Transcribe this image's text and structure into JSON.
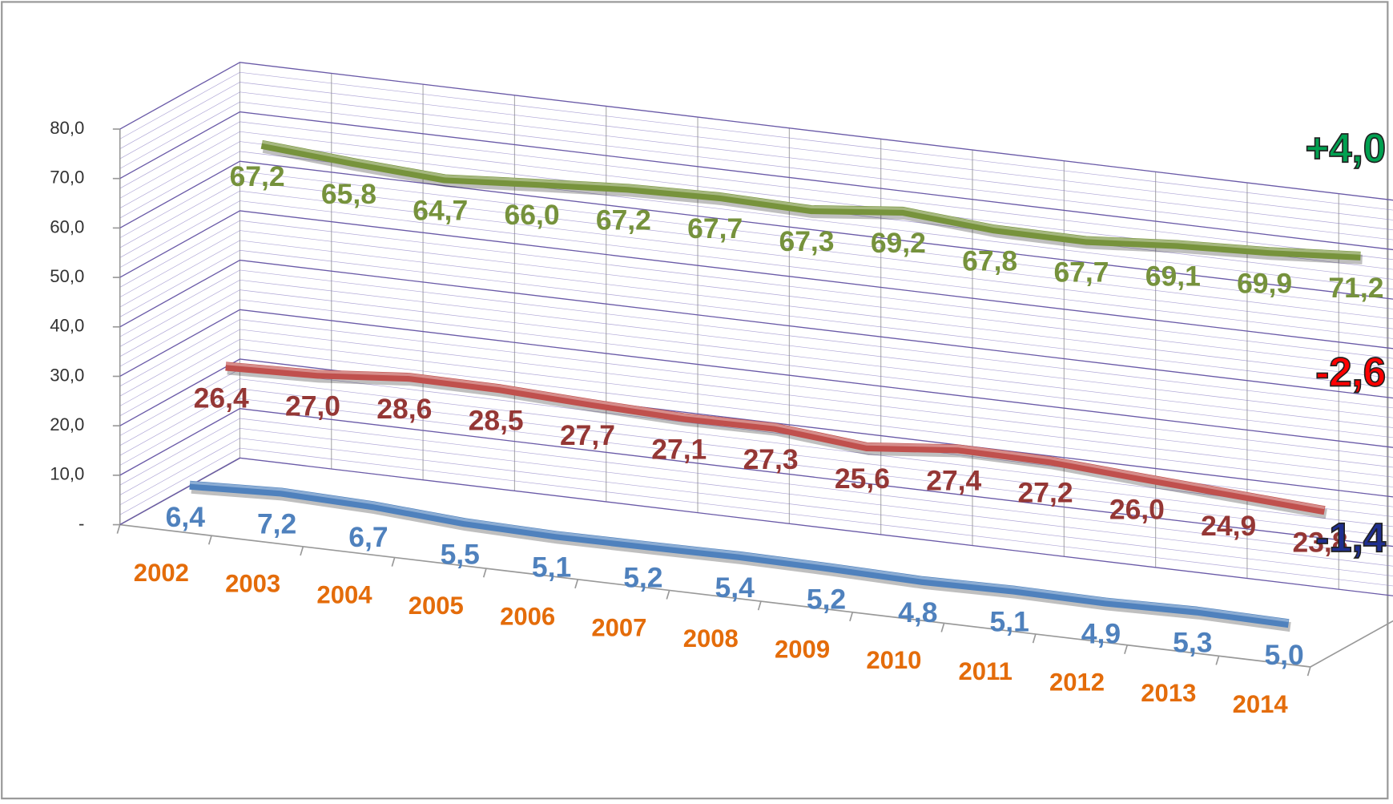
{
  "chart_data": {
    "type": "line",
    "categories": [
      "2002",
      "2003",
      "2004",
      "2005",
      "2006",
      "2007",
      "2008",
      "2009",
      "2010",
      "2011",
      "2012",
      "2013",
      "2014"
    ],
    "series": [
      {
        "color": "#77933c",
        "label_color": "#76923c",
        "values": [
          67.2,
          65.8,
          64.7,
          66.0,
          67.2,
          67.7,
          67.3,
          69.2,
          67.8,
          67.7,
          69.1,
          69.9,
          71.2
        ],
        "value_labels": [
          "67,2",
          "65,8",
          "64,7",
          "66,0",
          "67,2",
          "67,7",
          "67,3",
          "69,2",
          "67,8",
          "67,7",
          "69,1",
          "69,9",
          "71,2"
        ]
      },
      {
        "color": "#c0504d",
        "label_color": "#953735",
        "values": [
          26.4,
          27.0,
          28.6,
          28.5,
          27.7,
          27.1,
          27.3,
          25.6,
          27.4,
          27.2,
          26.0,
          24.9,
          23.8
        ],
        "value_labels": [
          "26,4",
          "27,0",
          "28,6",
          "28,5",
          "27,7",
          "27,1",
          "27,3",
          "25,6",
          "27,4",
          "27,2",
          "26,0",
          "24,9",
          "23,8"
        ]
      },
      {
        "color": "#4f81bd",
        "label_color": "#4f81bd",
        "values": [
          6.4,
          7.2,
          6.7,
          5.5,
          5.1,
          5.2,
          5.4,
          5.2,
          4.8,
          5.1,
          4.9,
          5.3,
          5.0
        ],
        "value_labels": [
          "6,4",
          "7,2",
          "6,7",
          "5,5",
          "5,1",
          "5,2",
          "5,4",
          "5,2",
          "4,8",
          "5,1",
          "4,9",
          "5,3",
          "5,0"
        ]
      }
    ],
    "ylim": [
      0,
      80
    ],
    "yticks": [
      {
        "value": 0,
        "label": "-"
      },
      {
        "value": 10,
        "label": "10,0"
      },
      {
        "value": 20,
        "label": "20,0"
      },
      {
        "value": 30,
        "label": "30,0"
      },
      {
        "value": 40,
        "label": "40,0"
      },
      {
        "value": 50,
        "label": "50,0"
      },
      {
        "value": 60,
        "label": "60,0"
      },
      {
        "value": 70,
        "label": "70,0"
      },
      {
        "value": 80,
        "label": "80,0"
      }
    ],
    "grid": true,
    "annotations": [
      {
        "text": "+4,0",
        "color": "#00a050"
      },
      {
        "text": "-2,6",
        "color": "#ff0000"
      },
      {
        "text": "-1,4",
        "color": "#1f2f8f"
      }
    ]
  }
}
